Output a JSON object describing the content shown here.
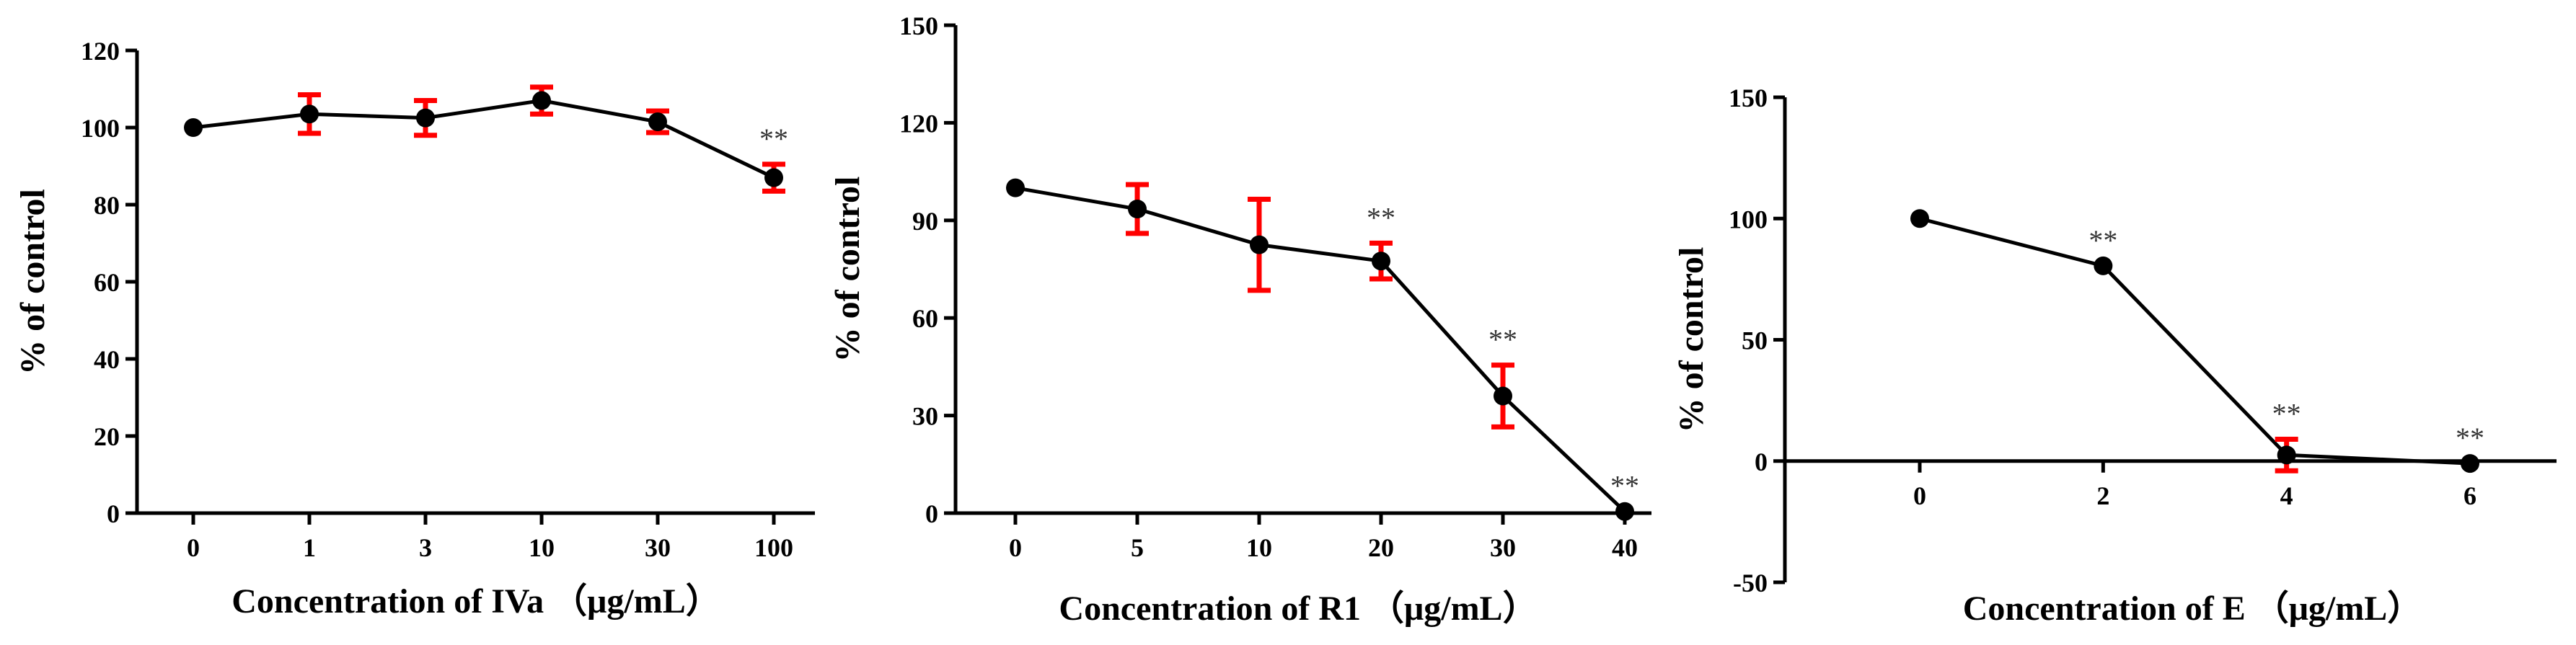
{
  "colors": {
    "axis": "#000000",
    "series": "#000000",
    "error_bar": "#ff0000",
    "significance": "#333333"
  },
  "chart_data": [
    {
      "type": "line",
      "title": "",
      "xlabel": "Concentration of IVa （μg/mL）",
      "ylabel": "% of control",
      "categories": [
        "0",
        "1",
        "3",
        "10",
        "30",
        "100"
      ],
      "ylim": [
        0,
        120
      ],
      "yticks": [
        0,
        20,
        40,
        60,
        80,
        100,
        120
      ],
      "series": [
        {
          "name": "IVa",
          "values": [
            100,
            103.5,
            102.5,
            107,
            101.5,
            87
          ],
          "errors": [
            0,
            5,
            4.5,
            3.5,
            2.8,
            3.5
          ],
          "significance": [
            "",
            "",
            "",
            "",
            "",
            "**"
          ]
        }
      ]
    },
    {
      "type": "line",
      "title": "",
      "xlabel": "Concentration of R1 （μg/mL）",
      "ylabel": "% of control",
      "categories": [
        "0",
        "5",
        "10",
        "20",
        "30",
        "40"
      ],
      "ylim": [
        0,
        150
      ],
      "yticks": [
        0,
        30,
        60,
        90,
        120,
        150
      ],
      "series": [
        {
          "name": "R1",
          "values": [
            100,
            93.5,
            82.5,
            77.5,
            36,
            0.5
          ],
          "errors": [
            0,
            7.5,
            14,
            5.5,
            9.5,
            0
          ],
          "significance": [
            "",
            "",
            "",
            "**",
            "**",
            "**"
          ]
        }
      ]
    },
    {
      "type": "line",
      "title": "",
      "xlabel": "Concentration of E （μg/mL）",
      "ylabel": "% of control",
      "categories": [
        "0",
        "2",
        "4",
        "6"
      ],
      "ylim": [
        -50,
        150
      ],
      "yticks": [
        -50,
        0,
        50,
        100,
        150
      ],
      "series": [
        {
          "name": "E",
          "values": [
            100,
            80.5,
            2.5,
            -1
          ],
          "errors": [
            0,
            0,
            6.5,
            0
          ],
          "significance": [
            "",
            "**",
            "**",
            "**"
          ]
        }
      ]
    }
  ]
}
